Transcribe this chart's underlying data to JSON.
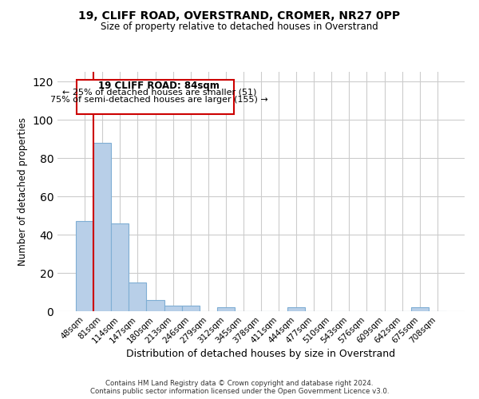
{
  "title": "19, CLIFF ROAD, OVERSTRAND, CROMER, NR27 0PP",
  "subtitle": "Size of property relative to detached houses in Overstrand",
  "xlabel": "Distribution of detached houses by size in Overstrand",
  "ylabel": "Number of detached properties",
  "bar_labels": [
    "48sqm",
    "81sqm",
    "114sqm",
    "147sqm",
    "180sqm",
    "213sqm",
    "246sqm",
    "279sqm",
    "312sqm",
    "345sqm",
    "378sqm",
    "411sqm",
    "444sqm",
    "477sqm",
    "510sqm",
    "543sqm",
    "576sqm",
    "609sqm",
    "642sqm",
    "675sqm",
    "708sqm"
  ],
  "bar_values": [
    47,
    88,
    46,
    15,
    6,
    3,
    3,
    0,
    2,
    0,
    0,
    0,
    2,
    0,
    0,
    0,
    0,
    0,
    0,
    2,
    0
  ],
  "bar_color": "#b8cfe8",
  "bar_edge_color": "#7faed4",
  "vline_color": "#cc0000",
  "ylim": [
    0,
    125
  ],
  "yticks": [
    0,
    20,
    40,
    60,
    80,
    100,
    120
  ],
  "annotation_title": "19 CLIFF ROAD: 84sqm",
  "annotation_line1": "← 25% of detached houses are smaller (51)",
  "annotation_line2": "75% of semi-detached houses are larger (155) →",
  "footer1": "Contains HM Land Registry data © Crown copyright and database right 2024.",
  "footer2": "Contains public sector information licensed under the Open Government Licence v3.0.",
  "background_color": "#ffffff",
  "grid_color": "#cccccc"
}
